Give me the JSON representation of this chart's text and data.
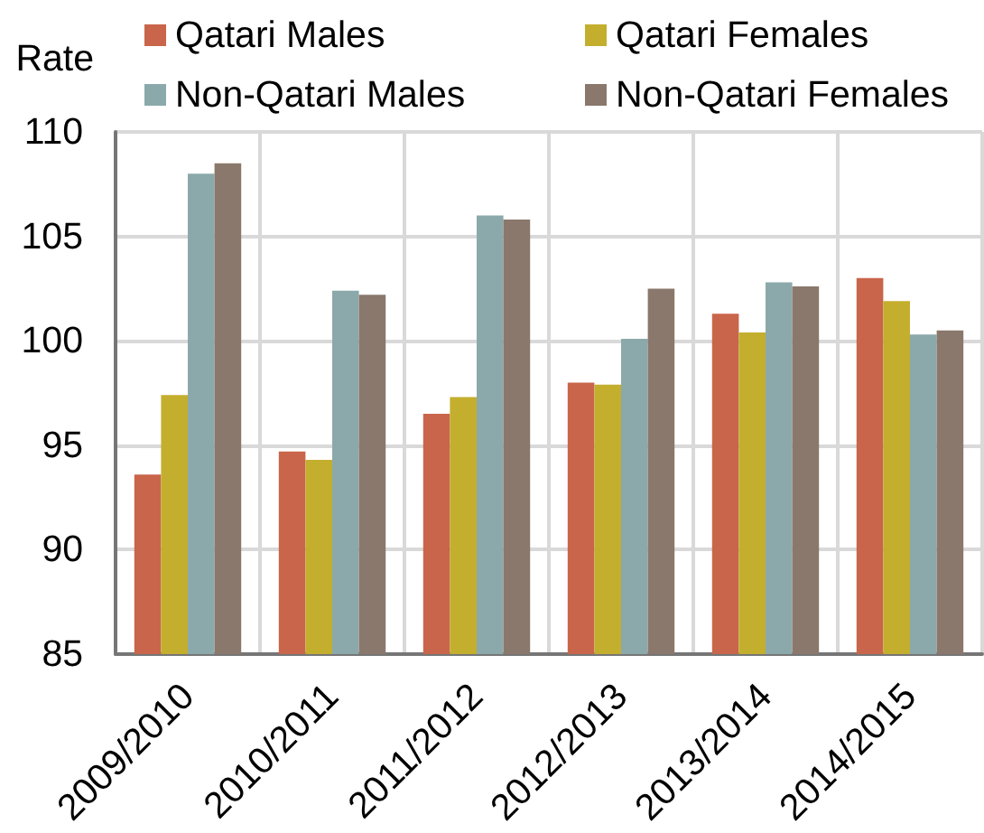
{
  "chart_data": {
    "type": "bar",
    "ylabel": "Rate",
    "categories": [
      "2009/2010",
      "2010/2011",
      "2011/2012",
      "2012/2013",
      "2013/2014",
      "2014/2015"
    ],
    "series": [
      {
        "name": "Qatari Males",
        "color": "#c9654a",
        "values": [
          93.6,
          94.7,
          96.5,
          98.0,
          101.3,
          103.0
        ]
      },
      {
        "name": "Qatari Females",
        "color": "#c4ae2e",
        "values": [
          97.4,
          94.3,
          97.3,
          97.9,
          100.4,
          101.9
        ]
      },
      {
        "name": "Non-Qatari Males",
        "color": "#8ba9ab",
        "values": [
          108.0,
          102.4,
          106.0,
          100.1,
          102.8,
          100.3
        ]
      },
      {
        "name": "Non-Qatari Females",
        "color": "#8a786c",
        "values": [
          108.5,
          102.2,
          105.8,
          102.5,
          102.6,
          100.5
        ]
      }
    ],
    "ylim": [
      85,
      110
    ],
    "yticks": [
      85,
      90,
      95,
      100,
      105,
      110
    ],
    "grid": true,
    "legend": "top"
  }
}
